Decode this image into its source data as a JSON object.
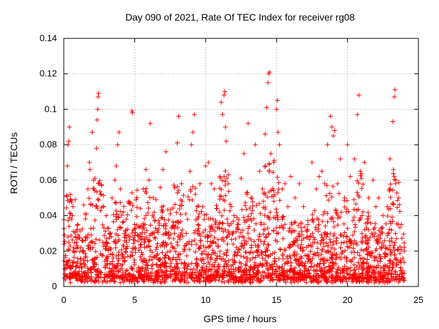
{
  "chart_data": {
    "type": "scatter",
    "title": "Day 090 of 2021, Rate Of TEC Index for receiver rg08",
    "xlabel": "GPS time / hours",
    "ylabel": "ROTI / TECUs",
    "xlim": [
      0,
      25
    ],
    "ylim": [
      0,
      0.14
    ],
    "xticks": [
      "0",
      "5",
      "10",
      "15",
      "20",
      "25"
    ],
    "yticks": [
      "0",
      "0.02",
      "0.04",
      "0.06",
      "0.08",
      "0.1",
      "0.12",
      "0.14"
    ],
    "grid": true,
    "marker": "plus",
    "color": "#ff0000",
    "series": [
      {
        "points": [
          [
            0.05,
            0.029
          ],
          [
            0.15,
            0.012
          ],
          [
            0.25,
            0.068
          ],
          [
            0.3,
            0.08
          ],
          [
            0.35,
            0.082
          ],
          [
            0.4,
            0.09
          ],
          [
            0.45,
            0.052
          ],
          [
            0.6,
            0.04
          ],
          [
            0.8,
            0.049
          ],
          [
            1.0,
            0.035
          ],
          [
            1.2,
            0.022
          ],
          [
            1.4,
            0.046
          ],
          [
            1.5,
            0.041
          ],
          [
            1.7,
            0.055
          ],
          [
            1.8,
            0.07
          ],
          [
            1.85,
            0.066
          ],
          [
            2.0,
            0.087
          ],
          [
            2.1,
            0.06
          ],
          [
            2.2,
            0.061
          ],
          [
            2.3,
            0.078
          ],
          [
            2.35,
            0.094
          ],
          [
            2.4,
            0.1
          ],
          [
            2.42,
            0.107
          ],
          [
            2.45,
            0.109
          ],
          [
            2.5,
            0.058
          ],
          [
            2.6,
            0.052
          ],
          [
            2.8,
            0.045
          ],
          [
            3.0,
            0.04
          ],
          [
            3.2,
            0.03
          ],
          [
            3.4,
            0.05
          ],
          [
            3.6,
            0.06
          ],
          [
            3.7,
            0.068
          ],
          [
            3.8,
            0.08
          ],
          [
            3.9,
            0.087
          ],
          [
            4.0,
            0.055
          ],
          [
            4.2,
            0.042
          ],
          [
            4.4,
            0.038
          ],
          [
            4.6,
            0.047
          ],
          [
            4.8,
            0.099
          ],
          [
            4.85,
            0.098
          ],
          [
            5.0,
            0.035
          ],
          [
            5.2,
            0.029
          ],
          [
            5.4,
            0.044
          ],
          [
            5.6,
            0.055
          ],
          [
            5.8,
            0.066
          ],
          [
            6.0,
            0.06
          ],
          [
            6.1,
            0.092
          ],
          [
            6.3,
            0.05
          ],
          [
            6.5,
            0.049
          ],
          [
            6.8,
            0.056
          ],
          [
            7.0,
            0.066
          ],
          [
            7.2,
            0.076
          ],
          [
            7.5,
            0.02
          ],
          [
            7.8,
            0.03
          ],
          [
            8.0,
            0.081
          ],
          [
            8.1,
            0.096
          ],
          [
            8.3,
            0.058
          ],
          [
            8.6,
            0.041
          ],
          [
            8.9,
            0.065
          ],
          [
            9.0,
            0.08
          ],
          [
            9.1,
            0.087
          ],
          [
            9.2,
            0.097
          ],
          [
            9.4,
            0.045
          ],
          [
            9.6,
            0.058
          ],
          [
            9.8,
            0.045
          ],
          [
            10.0,
            0.068
          ],
          [
            10.2,
            0.07
          ],
          [
            10.4,
            0.058
          ],
          [
            10.6,
            0.055
          ],
          [
            10.8,
            0.044
          ],
          [
            11.0,
            0.062
          ],
          [
            11.1,
            0.104
          ],
          [
            11.2,
            0.097
          ],
          [
            11.3,
            0.108
          ],
          [
            11.35,
            0.11
          ],
          [
            11.4,
            0.09
          ],
          [
            11.45,
            0.082
          ],
          [
            11.6,
            0.058
          ],
          [
            11.8,
            0.045
          ],
          [
            12.0,
            0.04
          ],
          [
            12.3,
            0.035
          ],
          [
            12.5,
            0.061
          ],
          [
            12.7,
            0.075
          ],
          [
            13.0,
            0.092
          ],
          [
            13.2,
            0.05
          ],
          [
            13.5,
            0.08
          ],
          [
            13.8,
            0.065
          ],
          [
            14.0,
            0.055
          ],
          [
            14.2,
            0.086
          ],
          [
            14.3,
            0.101
          ],
          [
            14.4,
            0.115
          ],
          [
            14.45,
            0.12
          ],
          [
            14.5,
            0.121
          ],
          [
            14.6,
            0.075
          ],
          [
            14.8,
            0.07
          ],
          [
            15.0,
            0.1
          ],
          [
            15.05,
            0.105
          ],
          [
            15.1,
            0.087
          ],
          [
            15.2,
            0.08
          ],
          [
            15.4,
            0.055
          ],
          [
            15.6,
            0.058
          ],
          [
            15.8,
            0.045
          ],
          [
            16.0,
            0.062
          ],
          [
            16.3,
            0.05
          ],
          [
            16.6,
            0.058
          ],
          [
            16.9,
            0.045
          ],
          [
            17.2,
            0.035
          ],
          [
            17.5,
            0.07
          ],
          [
            17.8,
            0.055
          ],
          [
            18.0,
            0.062
          ],
          [
            18.2,
            0.065
          ],
          [
            18.4,
            0.058
          ],
          [
            18.6,
            0.08
          ],
          [
            18.8,
            0.096
          ],
          [
            18.9,
            0.09
          ],
          [
            19.0,
            0.085
          ],
          [
            19.1,
            0.088
          ],
          [
            19.3,
            0.058
          ],
          [
            19.5,
            0.072
          ],
          [
            19.8,
            0.05
          ],
          [
            20.0,
            0.08
          ],
          [
            20.2,
            0.062
          ],
          [
            20.5,
            0.072
          ],
          [
            20.7,
            0.097
          ],
          [
            20.8,
            0.108
          ],
          [
            20.9,
            0.065
          ],
          [
            21.2,
            0.07
          ],
          [
            21.5,
            0.05
          ],
          [
            21.8,
            0.06
          ],
          [
            22.0,
            0.045
          ],
          [
            22.2,
            0.05
          ],
          [
            22.5,
            0.04
          ],
          [
            22.8,
            0.045
          ],
          [
            23.0,
            0.072
          ],
          [
            23.2,
            0.093
          ],
          [
            23.3,
            0.107
          ],
          [
            23.35,
            0.111
          ],
          [
            23.4,
            0.06
          ],
          [
            23.6,
            0.05
          ],
          [
            23.8,
            0.035
          ],
          [
            24.0,
            0.02
          ]
        ]
      }
    ]
  }
}
